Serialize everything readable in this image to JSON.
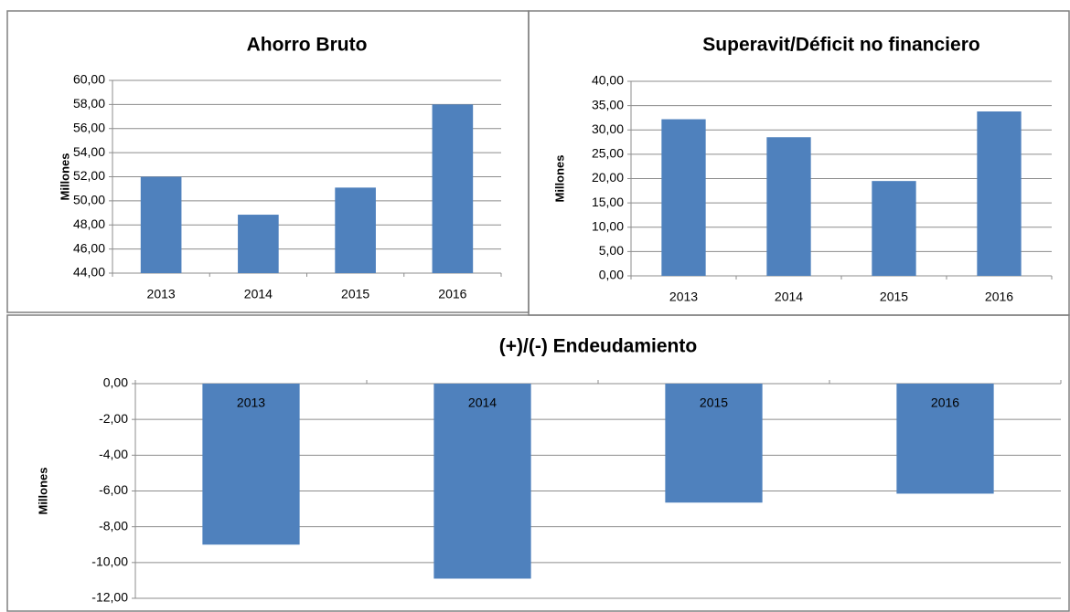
{
  "chart_data": [
    {
      "type": "bar",
      "title": "Ahorro Bruto",
      "ylabel": "Millones",
      "categories": [
        "2013",
        "2014",
        "2015",
        "2016"
      ],
      "values": [
        52.0,
        48.85,
        51.1,
        58.0
      ],
      "color": "#4f81bd",
      "ylim": [
        44,
        60
      ],
      "yticks": [
        {
          "value": 44,
          "label": "44,00"
        },
        {
          "value": 46,
          "label": "46,00"
        },
        {
          "value": 48,
          "label": "48,00"
        },
        {
          "value": 50,
          "label": "50,00"
        },
        {
          "value": 52,
          "label": "52,00"
        },
        {
          "value": 54,
          "label": "54,00"
        },
        {
          "value": 56,
          "label": "56,00"
        },
        {
          "value": 58,
          "label": "58,00"
        },
        {
          "value": 60,
          "label": "60,00"
        }
      ],
      "grid": true
    },
    {
      "type": "bar",
      "title": "Superavit/Déficit no financiero",
      "ylabel": "Millones",
      "categories": [
        "2013",
        "2014",
        "2015",
        "2016"
      ],
      "values": [
        32.2,
        28.5,
        19.5,
        33.8
      ],
      "color": "#4f81bd",
      "ylim": [
        0,
        40
      ],
      "yticks": [
        {
          "value": 0,
          "label": "0,00"
        },
        {
          "value": 5,
          "label": "5,00"
        },
        {
          "value": 10,
          "label": "10,00"
        },
        {
          "value": 15,
          "label": "15,00"
        },
        {
          "value": 20,
          "label": "20,00"
        },
        {
          "value": 25,
          "label": "25,00"
        },
        {
          "value": 30,
          "label": "30,00"
        },
        {
          "value": 35,
          "label": "35,00"
        },
        {
          "value": 40,
          "label": "40,00"
        }
      ],
      "grid": true
    },
    {
      "type": "bar",
      "title": "(+)/(-) Endeudamiento",
      "ylabel": "Millones",
      "categories": [
        "2013",
        "2014",
        "2015",
        "2016"
      ],
      "values": [
        -9.0,
        -10.9,
        -6.65,
        -6.15
      ],
      "color": "#4f81bd",
      "ylim": [
        -12,
        0
      ],
      "yticks": [
        {
          "value": -12,
          "label": "-12,00"
        },
        {
          "value": -10,
          "label": "-10,00"
        },
        {
          "value": -8,
          "label": "-8,00"
        },
        {
          "value": -6,
          "label": "-6,00"
        },
        {
          "value": -4,
          "label": "-4,00"
        },
        {
          "value": -2,
          "label": "-2,00"
        },
        {
          "value": 0,
          "label": "0,00"
        }
      ],
      "grid": true
    }
  ]
}
